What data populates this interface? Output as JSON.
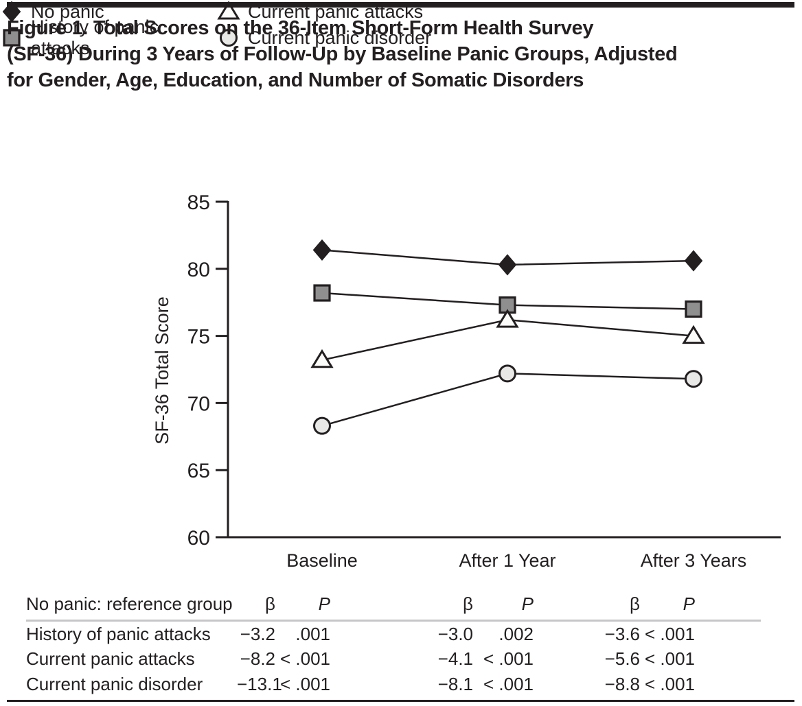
{
  "figure": {
    "title_lines": [
      "Figure 1. Total Scores on the 36-Item Short-Form Health Survey",
      "(SF-36) During 3 Years of Follow-Up by Baseline Panic Groups, Adjusted",
      "for Gender, Age, Education, and Number of Somatic Disorders"
    ],
    "ink_color": "#231f20",
    "rule_color": "#c6c6c8"
  },
  "chart_data": {
    "type": "line",
    "title": "",
    "xlabel": "",
    "ylabel": "SF-36 Total Score",
    "categories": [
      "Baseline",
      "After 1 Year",
      "After 3 Years"
    ],
    "ylim": [
      60,
      85
    ],
    "yticks": [
      60,
      65,
      70,
      75,
      80,
      85
    ],
    "grid": false,
    "legend_position": "top",
    "line_color": "#231f20",
    "series": [
      {
        "name": "No panic",
        "marker": "diamond",
        "marker_fill": "#231f20",
        "values": [
          81.4,
          80.3,
          80.6
        ]
      },
      {
        "name": "History of panic attacks",
        "marker": "square",
        "marker_fill": "#8f8f8f",
        "values": [
          78.2,
          77.3,
          77.0
        ]
      },
      {
        "name": "Current panic attacks",
        "marker": "triangle",
        "marker_fill": "#fcfcfb",
        "values": [
          73.2,
          76.2,
          75.0
        ]
      },
      {
        "name": "Current panic disorder",
        "marker": "circle",
        "marker_fill": "#e8e8e7",
        "values": [
          68.3,
          72.2,
          71.8
        ]
      }
    ]
  },
  "table": {
    "header": {
      "label": "No panic: reference group",
      "beta": "β",
      "p": "P"
    },
    "rows": [
      {
        "label": "History of panic attacks",
        "values": [
          "−3.2",
          ".001",
          "−3.0",
          ".002",
          "−3.6",
          "< .001"
        ]
      },
      {
        "label": "Current panic attacks",
        "values": [
          "−8.2",
          "< .001",
          "−4.1",
          "< .001",
          "−5.6",
          "< .001"
        ]
      },
      {
        "label": "Current panic disorder",
        "values": [
          "−13.1",
          "< .001",
          "−8.1",
          "< .001",
          "−8.8",
          "< .001"
        ]
      }
    ]
  }
}
